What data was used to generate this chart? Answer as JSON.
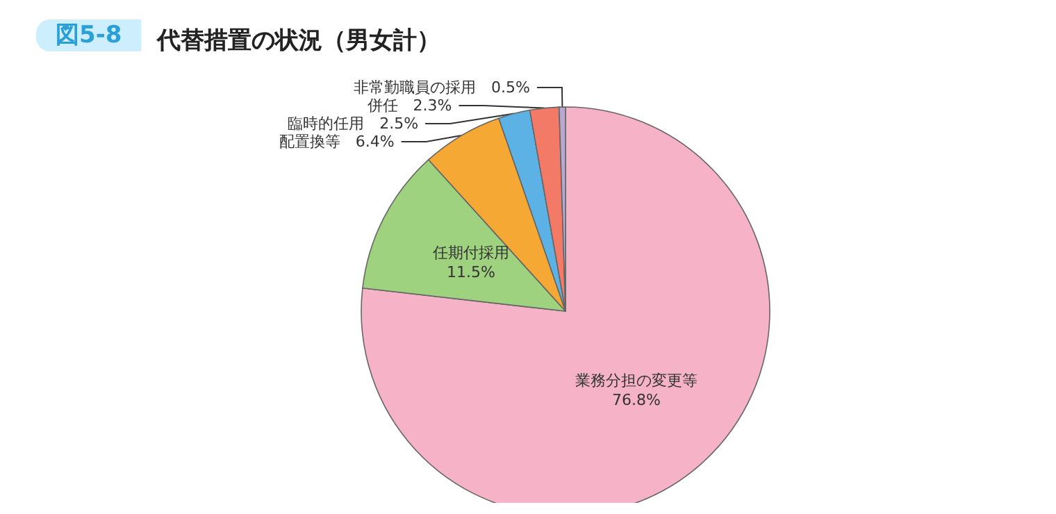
{
  "chart_data": {
    "type": "pie",
    "subtitle": "図5-8",
    "title": "代替措置の状況（男女計）",
    "categories": [
      "業務分担の変更等",
      "任期付採用",
      "配置換等",
      "臨時的任用",
      "併任",
      "非常勤職員の採用"
    ],
    "values": [
      76.8,
      11.5,
      6.4,
      2.5,
      2.3,
      0.5
    ],
    "value_labels": [
      "76.8%",
      "11.5%",
      "6.4%",
      "2.5%",
      "2.3%",
      "0.5%"
    ],
    "colors": [
      "#f6b3c8",
      "#9fd27f",
      "#f5a833",
      "#5cb2e4",
      "#f27a66",
      "#b8a8d0"
    ],
    "legend": false
  }
}
